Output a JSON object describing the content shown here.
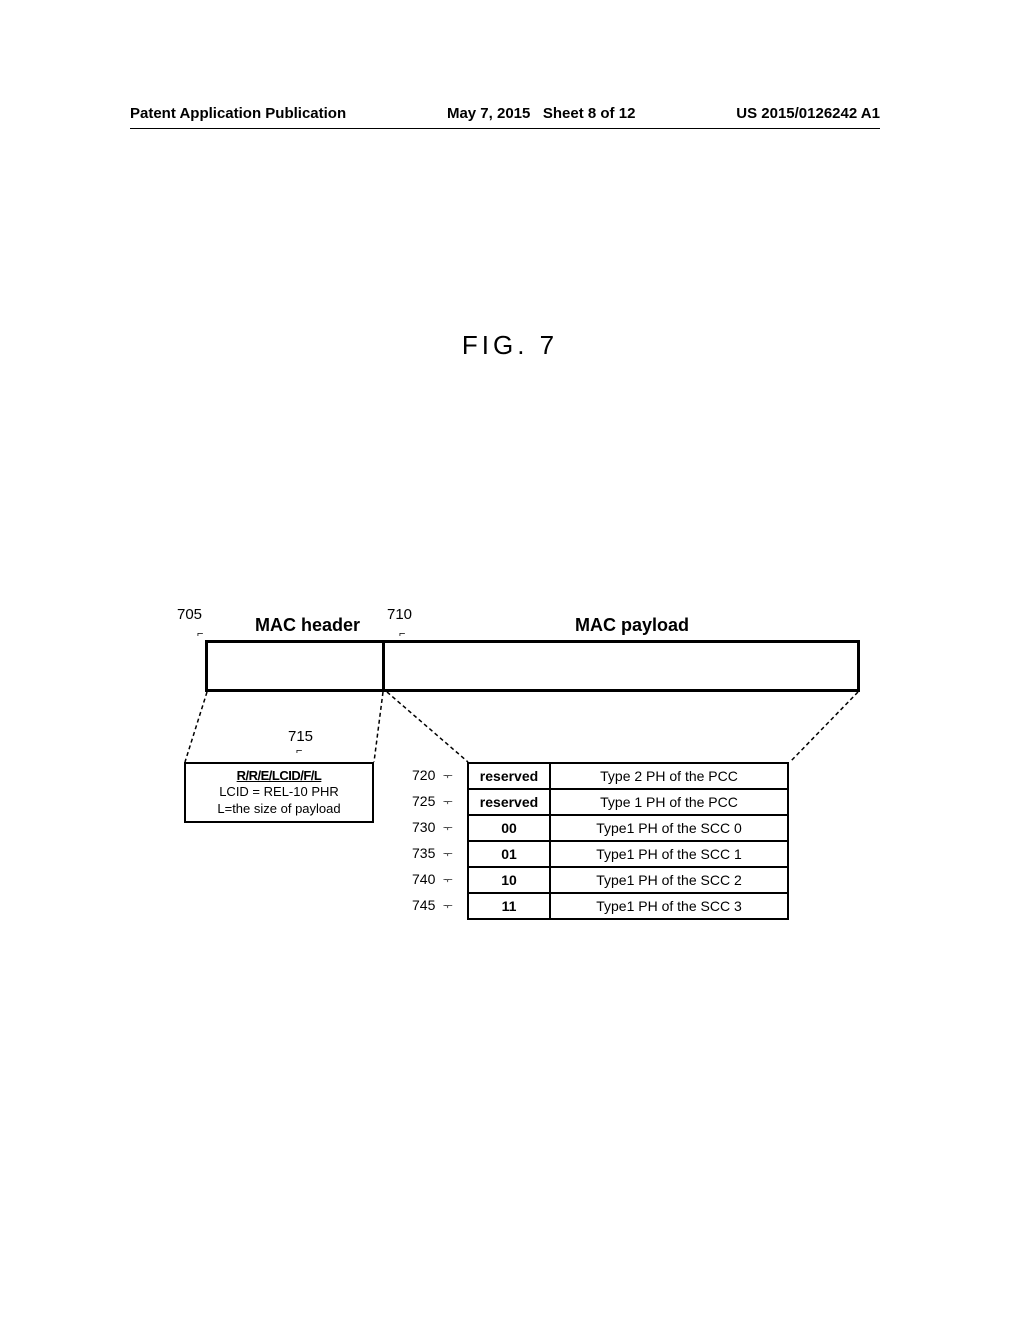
{
  "header": {
    "left": "Patent Application Publication",
    "date": "May 7, 2015",
    "sheet": "Sheet 8 of 12",
    "pubno": "US 2015/0126242 A1"
  },
  "figure_title": "FIG. 7",
  "refs": {
    "r705": "705",
    "r710": "710",
    "r715": "715"
  },
  "mac": {
    "header_label": "MAC header",
    "payload_label": "MAC payload"
  },
  "detail715": {
    "line1": "R/R/E/LCID/F/L",
    "line2": "LCID = REL-10 PHR",
    "line3": "L=the size of payload"
  },
  "payload_rows": [
    {
      "ref": "720",
      "c0": "reserved",
      "c1": "Type 2 PH of the PCC"
    },
    {
      "ref": "725",
      "c0": "reserved",
      "c1": "Type 1 PH of the PCC"
    },
    {
      "ref": "730",
      "c0": "00",
      "c1": "Type1 PH of the SCC 0"
    },
    {
      "ref": "735",
      "c0": "01",
      "c1": "Type1 PH of the SCC 1"
    },
    {
      "ref": "740",
      "c0": "10",
      "c1": "Type1 PH of the SCC 2"
    },
    {
      "ref": "745",
      "c0": "11",
      "c1": "Type1 PH of the SCC 3"
    }
  ]
}
